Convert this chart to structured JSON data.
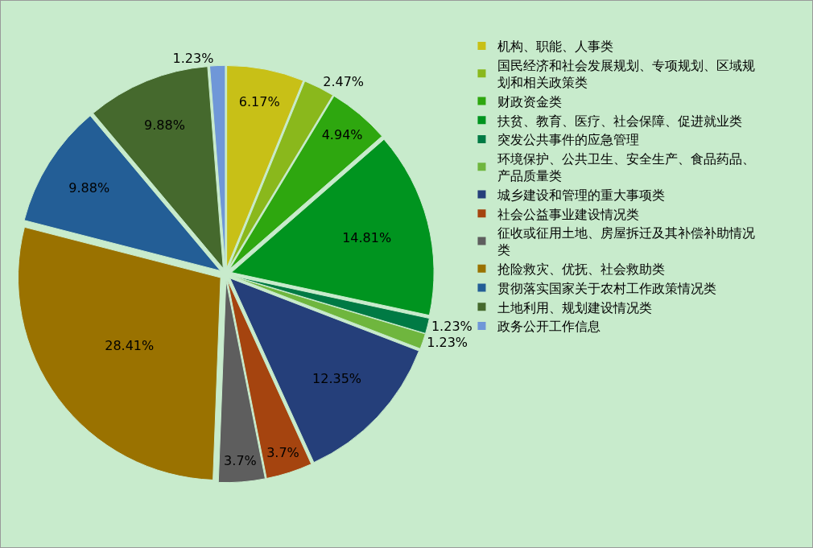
{
  "chart_data": {
    "type": "pie",
    "categories": [
      "机构、职能、人事类",
      "国民经济和社会发展规划、专项规划、区域规划和相关政策类",
      "财政资金类",
      "扶贫、教育、医疗、社会保障、促进就业类",
      "突发公共事件的应急管理",
      "环境保护、公共卫生、安全生产、食品药品、产品质量类",
      "城乡建设和管理的重大事项类",
      "社会公益事业建设情况类",
      "征收或征用土地、房屋拆迁及其补偿补助情况类",
      "抢险救灾、优抚、社会救助类",
      "贯彻落实国家关于农村工作政策情况类",
      "土地利用、规划建设情况类",
      "政务公开工作信息"
    ],
    "values": [
      6.17,
      2.47,
      4.94,
      14.81,
      1.23,
      1.23,
      12.35,
      3.7,
      3.7,
      28.41,
      9.88,
      9.88,
      1.23
    ],
    "colors": [
      "#c8c017",
      "#8ab81c",
      "#2ea70f",
      "#00941f",
      "#007a44",
      "#6fb63e",
      "#253f7a",
      "#a5440f",
      "#5e5e5e",
      "#9a7200",
      "#235e96",
      "#45692d",
      "#6f97d8"
    ],
    "value_labels": [
      "6.17%",
      "2.47%",
      "4.94%",
      "14.81%",
      "1.23%",
      "1.23%",
      "12.35%",
      "3.7%",
      "3.7%",
      "28.41%",
      "9.88%",
      "9.88%",
      "1.23%"
    ],
    "legend": "right"
  }
}
